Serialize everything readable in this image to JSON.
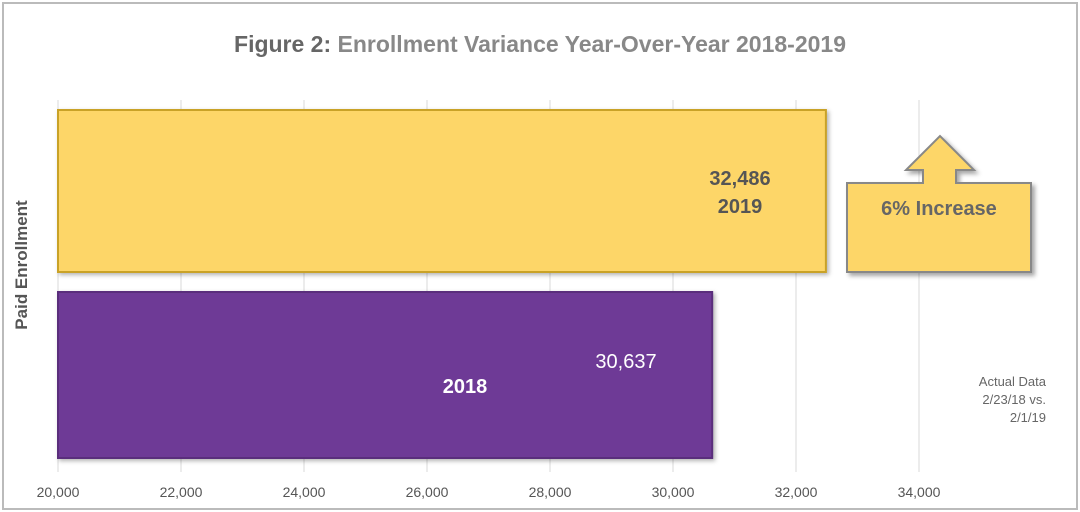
{
  "chart_data": {
    "type": "bar",
    "orientation": "horizontal",
    "title_prefix": "Figure 2:",
    "title": "Enrollment Variance Year-Over-Year 2018-2019",
    "ylabel": "Paid Enrollment",
    "xlabel": "",
    "xlim": [
      20000,
      35000
    ],
    "x_ticks": [
      "20,000",
      "22,000",
      "24,000",
      "26,000",
      "28,000",
      "30,000",
      "32,000",
      "34,000"
    ],
    "x_tick_values": [
      20000,
      22000,
      24000,
      26000,
      28000,
      30000,
      32000,
      34000
    ],
    "grid": true,
    "series": [
      {
        "category": "2019",
        "value": 32486,
        "value_label": "32,486",
        "color": "#FDD668",
        "border": "#C9A227"
      },
      {
        "category": "2018",
        "value": 30637,
        "value_label": "30,637",
        "color": "#6E3A96",
        "border": "#5A2E7C"
      }
    ],
    "annotation": {
      "text": "6% Increase",
      "color": "#FDD668",
      "icon": "up-arrow-callout"
    },
    "note": [
      "Actual Data",
      "2/23/18 vs.",
      "2/1/19"
    ]
  }
}
